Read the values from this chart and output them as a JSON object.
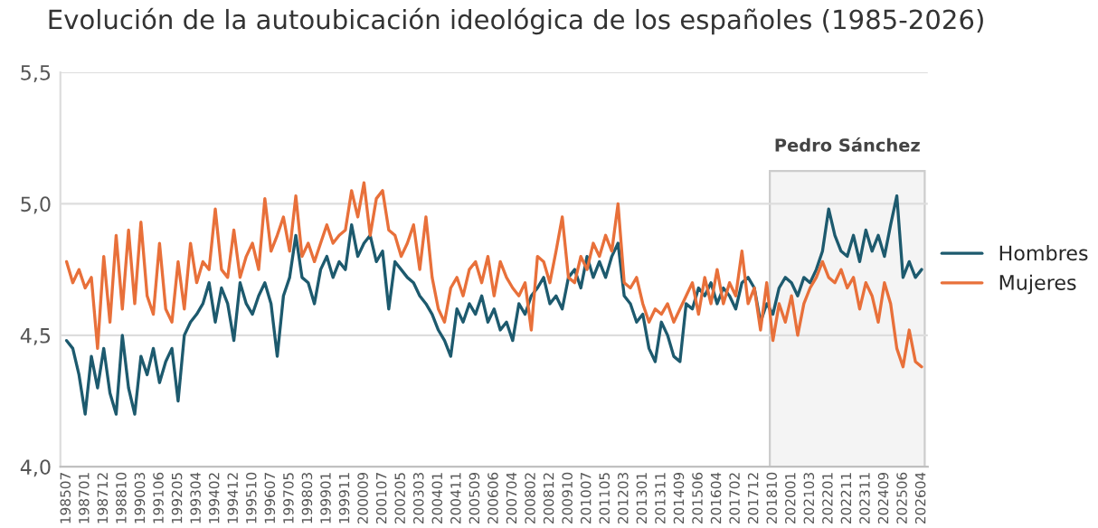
{
  "chart_data": {
    "type": "line",
    "title": "Evolución de la autoubicación ideológica de los españoles (1985-2026)",
    "categories": [
      "198507",
      null,
      null,
      "198701",
      null,
      null,
      "198712",
      null,
      null,
      "198810",
      null,
      null,
      "199003",
      null,
      null,
      "199106",
      null,
      null,
      "199205",
      null,
      null,
      "199304",
      null,
      null,
      "199402",
      null,
      null,
      "199412",
      null,
      null,
      "199510",
      null,
      null,
      "199607",
      null,
      null,
      "199705",
      null,
      null,
      "199803",
      null,
      null,
      "199901",
      null,
      null,
      "199911",
      null,
      null,
      "200009",
      null,
      null,
      "200107",
      null,
      null,
      "200205",
      null,
      null,
      "200303",
      null,
      null,
      "200401",
      null,
      null,
      "200411",
      null,
      null,
      "200509",
      null,
      null,
      "200606",
      null,
      null,
      "200704",
      null,
      null,
      "200802",
      null,
      null,
      "200812",
      null,
      null,
      "200910",
      null,
      null,
      "201007",
      null,
      null,
      "201105",
      null,
      null,
      "201203",
      null,
      null,
      "201301",
      null,
      null,
      "201311",
      null,
      null,
      "201409",
      null,
      null,
      "201506",
      null,
      null,
      "201604",
      null,
      null,
      "201702",
      null,
      null,
      "201712",
      null,
      null,
      "201810",
      null,
      null,
      "202001",
      null,
      null,
      "202103",
      null,
      null,
      "202201",
      null,
      null,
      "202211",
      null,
      null,
      "202311",
      null,
      null,
      "202409",
      null,
      null,
      "202506",
      null,
      null,
      "202604"
    ],
    "series": [
      {
        "name": "Hombres",
        "color": "#1d5a6e",
        "values": [
          4.48,
          4.45,
          4.35,
          4.2,
          4.42,
          4.3,
          4.45,
          4.28,
          4.2,
          4.5,
          4.3,
          4.2,
          4.42,
          4.35,
          4.45,
          4.32,
          4.4,
          4.45,
          4.25,
          4.5,
          4.55,
          4.58,
          4.62,
          4.7,
          4.55,
          4.68,
          4.62,
          4.48,
          4.7,
          4.62,
          4.58,
          4.65,
          4.7,
          4.62,
          4.42,
          4.65,
          4.72,
          4.88,
          4.72,
          4.7,
          4.62,
          4.75,
          4.8,
          4.72,
          4.78,
          4.75,
          4.92,
          4.8,
          4.85,
          4.88,
          4.78,
          4.82,
          4.6,
          4.78,
          4.75,
          4.72,
          4.7,
          4.65,
          4.62,
          4.58,
          4.52,
          4.48,
          4.42,
          4.6,
          4.55,
          4.62,
          4.58,
          4.65,
          4.55,
          4.6,
          4.52,
          4.55,
          4.48,
          4.62,
          4.58,
          4.65,
          4.68,
          4.72,
          4.62,
          4.65,
          4.6,
          4.72,
          4.75,
          4.68,
          4.8,
          4.72,
          4.78,
          4.72,
          4.8,
          4.85,
          4.65,
          4.62,
          4.55,
          4.58,
          4.45,
          4.4,
          4.55,
          4.5,
          4.42,
          4.4,
          4.62,
          4.6,
          4.68,
          4.65,
          4.7,
          4.62,
          4.68,
          4.65,
          4.6,
          4.7,
          4.72,
          4.68,
          4.55,
          4.62,
          4.58,
          4.68,
          4.72,
          4.7,
          4.65,
          4.72,
          4.7,
          4.75,
          4.82,
          4.98,
          4.88,
          4.82,
          4.8,
          4.88,
          4.78,
          4.9,
          4.82,
          4.88,
          4.8,
          4.92,
          5.03,
          4.72,
          4.78,
          4.72,
          4.75
        ]
      },
      {
        "name": "Mujeres",
        "color": "#e8703a",
        "values": [
          4.78,
          4.7,
          4.75,
          4.68,
          4.72,
          4.45,
          4.8,
          4.55,
          4.88,
          4.6,
          4.9,
          4.62,
          4.93,
          4.65,
          4.58,
          4.85,
          4.6,
          4.55,
          4.78,
          4.6,
          4.85,
          4.7,
          4.78,
          4.75,
          4.98,
          4.75,
          4.72,
          4.9,
          4.72,
          4.8,
          4.85,
          4.75,
          5.02,
          4.82,
          4.88,
          4.95,
          4.82,
          5.03,
          4.8,
          4.85,
          4.78,
          4.85,
          4.92,
          4.85,
          4.88,
          4.9,
          5.05,
          4.95,
          5.08,
          4.88,
          5.02,
          5.05,
          4.9,
          4.88,
          4.8,
          4.85,
          4.92,
          4.75,
          4.95,
          4.72,
          4.6,
          4.55,
          4.68,
          4.72,
          4.65,
          4.75,
          4.78,
          4.7,
          4.8,
          4.65,
          4.78,
          4.72,
          4.68,
          4.65,
          4.7,
          4.52,
          4.8,
          4.78,
          4.7,
          4.82,
          4.95,
          4.72,
          4.7,
          4.8,
          4.75,
          4.85,
          4.8,
          4.88,
          4.82,
          5.0,
          4.7,
          4.68,
          4.72,
          4.62,
          4.55,
          4.6,
          4.58,
          4.62,
          4.55,
          4.6,
          4.65,
          4.7,
          4.58,
          4.72,
          4.62,
          4.75,
          4.62,
          4.7,
          4.65,
          4.82,
          4.62,
          4.68,
          4.52,
          4.7,
          4.48,
          4.62,
          4.55,
          4.65,
          4.5,
          4.62,
          4.68,
          4.72,
          4.78,
          4.72,
          4.7,
          4.75,
          4.68,
          4.72,
          4.6,
          4.7,
          4.65,
          4.55,
          4.7,
          4.62,
          4.45,
          4.38,
          4.52,
          4.4,
          4.38
        ]
      }
    ],
    "ylim": [
      4.0,
      5.5
    ],
    "yticks": [
      {
        "value": 4.0,
        "label": "4,0"
      },
      {
        "value": 4.5,
        "label": "4,5"
      },
      {
        "value": 5.0,
        "label": "5,0"
      },
      {
        "value": 5.5,
        "label": "5,5"
      }
    ],
    "grid": "y",
    "legend": "right",
    "line_style": "solid",
    "bands": [
      {
        "axis": "x",
        "from": "201810",
        "to": "202604",
        "label": "Pedro Sánchez",
        "color": "#f4f4f4"
      }
    ]
  }
}
